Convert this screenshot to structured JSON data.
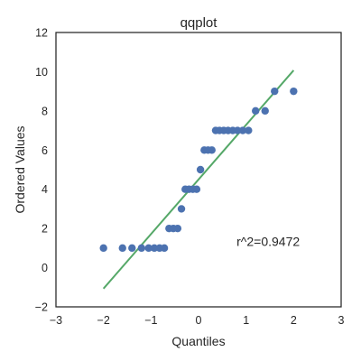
{
  "chart_data": {
    "type": "scatter",
    "title": "qqplot",
    "xlabel": "Quantiles",
    "ylabel": "Ordered Values",
    "xlim": [
      -3,
      3
    ],
    "ylim": [
      -2,
      12
    ],
    "xticks": [
      -3,
      -2,
      -1,
      0,
      1,
      2,
      3
    ],
    "yticks": [
      -2,
      0,
      2,
      4,
      6,
      8,
      10,
      12
    ],
    "grid": false,
    "points": [
      {
        "x": -2.0,
        "y": 1
      },
      {
        "x": -1.6,
        "y": 1
      },
      {
        "x": -1.4,
        "y": 1
      },
      {
        "x": -1.2,
        "y": 1
      },
      {
        "x": -1.05,
        "y": 1
      },
      {
        "x": -0.93,
        "y": 1
      },
      {
        "x": -0.82,
        "y": 1
      },
      {
        "x": -0.72,
        "y": 1
      },
      {
        "x": -0.62,
        "y": 2
      },
      {
        "x": -0.53,
        "y": 2
      },
      {
        "x": -0.44,
        "y": 2
      },
      {
        "x": -0.36,
        "y": 3
      },
      {
        "x": -0.28,
        "y": 4
      },
      {
        "x": -0.2,
        "y": 4
      },
      {
        "x": -0.12,
        "y": 4
      },
      {
        "x": -0.04,
        "y": 4
      },
      {
        "x": 0.04,
        "y": 5
      },
      {
        "x": 0.12,
        "y": 6
      },
      {
        "x": 0.2,
        "y": 6
      },
      {
        "x": 0.28,
        "y": 6
      },
      {
        "x": 0.36,
        "y": 7
      },
      {
        "x": 0.44,
        "y": 7
      },
      {
        "x": 0.53,
        "y": 7
      },
      {
        "x": 0.62,
        "y": 7
      },
      {
        "x": 0.72,
        "y": 7
      },
      {
        "x": 0.82,
        "y": 7
      },
      {
        "x": 0.93,
        "y": 7
      },
      {
        "x": 1.05,
        "y": 7
      },
      {
        "x": 1.2,
        "y": 8
      },
      {
        "x": 1.4,
        "y": 8
      },
      {
        "x": 1.6,
        "y": 9
      },
      {
        "x": 2.0,
        "y": 9
      }
    ],
    "fit_line": {
      "x": [
        -2.0,
        2.0
      ],
      "y": [
        -1.07,
        10.07
      ]
    },
    "annotation": {
      "text": "r^2=0.9472",
      "x": 0.8,
      "y": 1.1
    },
    "colors": {
      "points": "#4c72b0",
      "line": "#55a868",
      "frame": "#262626"
    }
  }
}
